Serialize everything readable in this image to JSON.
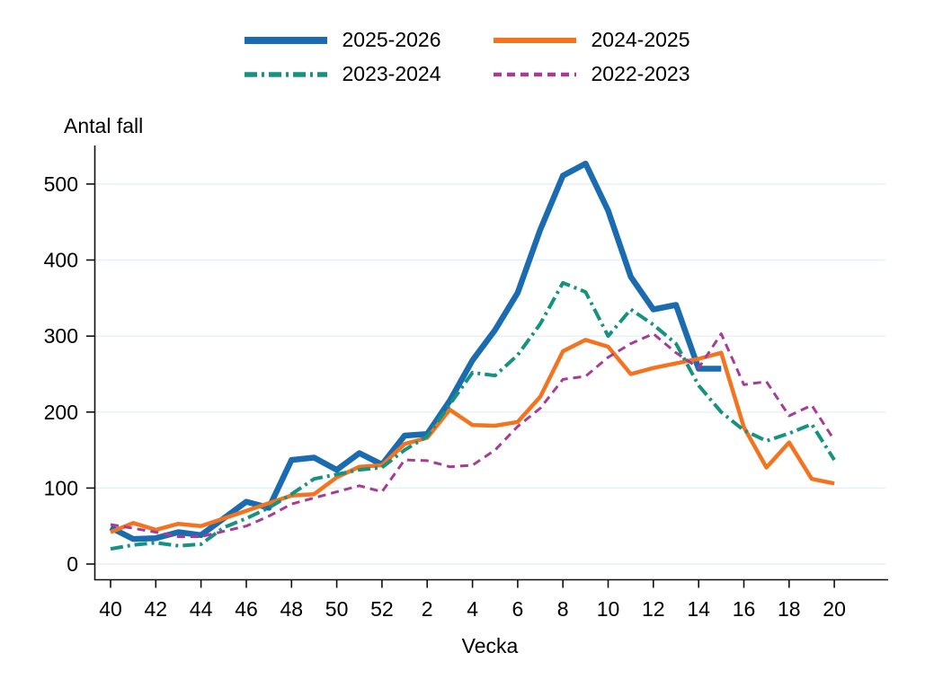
{
  "chart_data": {
    "type": "line",
    "title": "",
    "xlabel": "Vecka",
    "ylabel": "Antal fall",
    "x_categories": [
      "40",
      "41",
      "42",
      "43",
      "44",
      "45",
      "46",
      "47",
      "48",
      "49",
      "50",
      "51",
      "52",
      "1",
      "2",
      "3",
      "4",
      "5",
      "6",
      "7",
      "8",
      "9",
      "10",
      "11",
      "12",
      "13",
      "14",
      "15",
      "16",
      "17",
      "18",
      "19",
      "20"
    ],
    "x_tick_labels": [
      "40",
      "42",
      "44",
      "46",
      "48",
      "50",
      "52",
      "2",
      "4",
      "6",
      "8",
      "10",
      "12",
      "14",
      "16",
      "18",
      "20"
    ],
    "y_ticks": [
      0,
      100,
      200,
      300,
      400,
      500
    ],
    "ylim": [
      0,
      550
    ],
    "grid": "horizontal",
    "legend_position": "top-center",
    "style": {
      "grid_color": "#e6eff3",
      "axis_color": "#111111",
      "text_color": "#000000",
      "background": "#ffffff"
    },
    "series": [
      {
        "name": "2025-2026",
        "color": "#1b6bb0",
        "line_style": "solid",
        "width": 6.5,
        "dasharray": "",
        "values": [
          48,
          33,
          34,
          42,
          38,
          60,
          82,
          74,
          137,
          140,
          124,
          146,
          131,
          169,
          171,
          215,
          268,
          308,
          357,
          440,
          511,
          527,
          465,
          378,
          335,
          341,
          257,
          257,
          null,
          null,
          null,
          null,
          null
        ]
      },
      {
        "name": "2024-2025",
        "color": "#f4731e",
        "line_style": "solid",
        "width": 4.5,
        "dasharray": "",
        "values": [
          42,
          54,
          45,
          53,
          50,
          60,
          70,
          80,
          90,
          92,
          114,
          128,
          130,
          158,
          166,
          203,
          183,
          182,
          187,
          220,
          280,
          295,
          286,
          250,
          258,
          264,
          270,
          278,
          180,
          127,
          160,
          112,
          106
        ]
      },
      {
        "name": "2023-2024",
        "color": "#159280",
        "line_style": "dash-dot",
        "width": 4,
        "dasharray": "14 5 3 5",
        "values": [
          20,
          25,
          28,
          24,
          26,
          48,
          60,
          74,
          92,
          112,
          118,
          124,
          127,
          150,
          168,
          210,
          252,
          248,
          275,
          316,
          370,
          358,
          300,
          335,
          315,
          290,
          235,
          200,
          176,
          162,
          172,
          184,
          137
        ]
      },
      {
        "name": "2022-2023",
        "color": "#a63c96",
        "line_style": "dashed",
        "width": 3,
        "dasharray": "9 6",
        "values": [
          52,
          47,
          42,
          36,
          36,
          43,
          50,
          63,
          79,
          87,
          95,
          103,
          95,
          137,
          136,
          128,
          130,
          150,
          181,
          205,
          243,
          247,
          272,
          290,
          303,
          278,
          258,
          303,
          236,
          240,
          195,
          209,
          163
        ]
      }
    ]
  }
}
